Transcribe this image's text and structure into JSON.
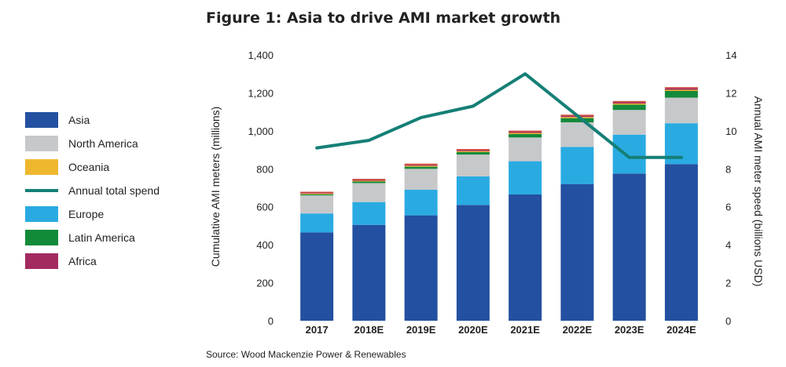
{
  "chart_data": {
    "type": "bar",
    "stacked": true,
    "title": "Figure 1: Asia to drive AMI market growth",
    "source": "Source: Wood Mackenzie Power & Renewables",
    "categories": [
      "2017",
      "2018E",
      "2019E",
      "2020E",
      "2021E",
      "2022E",
      "2023E",
      "2024E"
    ],
    "ylabel": "Cumulative AMI meters (millions)",
    "y2label": "Annual AMI meter speed (billions USD)",
    "ylim": [
      0,
      1400
    ],
    "yticks": [
      "0",
      "200",
      "400",
      "600",
      "800",
      "1,000",
      "1,200",
      "1,400"
    ],
    "y2lim": [
      0,
      14
    ],
    "y2ticks": [
      "0",
      "2",
      "4",
      "6",
      "8",
      "10",
      "12",
      "14"
    ],
    "series": [
      {
        "name": "Asia",
        "color": "#2350a0",
        "values": [
          465,
          505,
          555,
          610,
          665,
          720,
          775,
          825
        ]
      },
      {
        "name": "Europe",
        "color": "#29abe2",
        "values": [
          100,
          120,
          135,
          150,
          175,
          195,
          205,
          215
        ]
      },
      {
        "name": "North America",
        "color": "#c6c8ca",
        "values": [
          95,
          100,
          110,
          115,
          125,
          130,
          130,
          135
        ]
      },
      {
        "name": "Latin America",
        "color": "#138a3a",
        "values": [
          6,
          8,
          11,
          13,
          18,
          22,
          28,
          35
        ]
      },
      {
        "name": "Oceania",
        "color": "#eeb72e",
        "values": [
          4,
          4,
          5,
          5,
          6,
          6,
          6,
          6
        ]
      },
      {
        "name": "Africa",
        "color": "#a32a5f",
        "values": [
          3,
          4,
          5,
          5,
          6,
          6,
          7,
          8
        ]
      }
    ],
    "line_series": {
      "name": "Annual total spend",
      "color": "#157f76",
      "axis": "right",
      "values": [
        9.1,
        9.5,
        10.7,
        11.3,
        13.0,
        10.8,
        8.6,
        8.6
      ]
    },
    "legend": {
      "position": "left",
      "items": [
        {
          "label": "Asia",
          "kind": "box",
          "color": "#2350a0"
        },
        {
          "label": "North America",
          "kind": "box",
          "color": "#c6c8ca"
        },
        {
          "label": "Oceania",
          "kind": "box",
          "color": "#eeb72e"
        },
        {
          "label": "Annual total spend",
          "kind": "line",
          "color": "#157f76"
        },
        {
          "label": "Europe",
          "kind": "box",
          "color": "#29abe2"
        },
        {
          "label": "Latin America",
          "kind": "box",
          "color": "#138a3a"
        },
        {
          "label": "Africa",
          "kind": "box",
          "color": "#a32a5f"
        }
      ]
    }
  }
}
